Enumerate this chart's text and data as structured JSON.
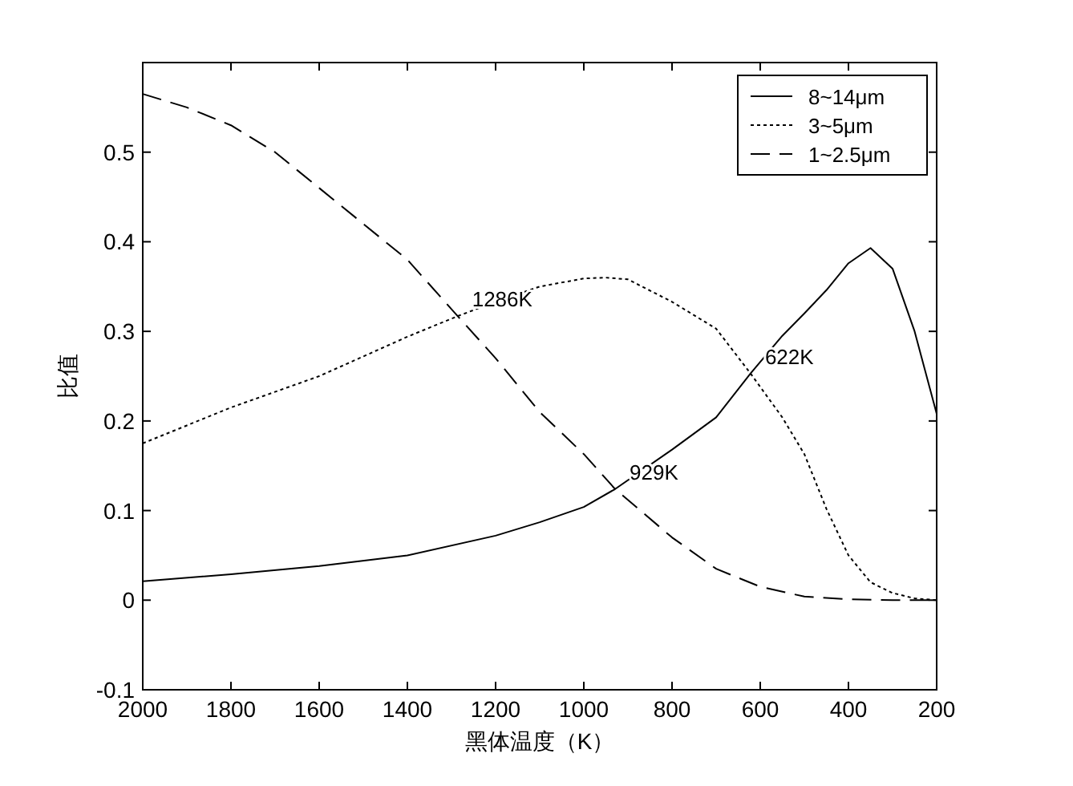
{
  "chart_data": {
    "type": "line",
    "xlabel": "黑体温度（K）",
    "ylabel": "比值",
    "xlim": [
      2000,
      200
    ],
    "ylim": [
      -0.1,
      0.6
    ],
    "xticks": [
      2000,
      1800,
      1600,
      1400,
      1200,
      1000,
      800,
      600,
      400,
      200
    ],
    "yticks": [
      -0.1,
      0,
      0.1,
      0.2,
      0.3,
      0.4,
      0.5
    ],
    "legend": "top right",
    "grid": false,
    "marker": "none",
    "series": [
      {
        "name": "8~14μm",
        "color": "#000000",
        "line_style": "solid",
        "x": [
          2000,
          1800,
          1600,
          1400,
          1200,
          1100,
          1000,
          929,
          800,
          700,
          622,
          550,
          500,
          450,
          400,
          350,
          300,
          250,
          200
        ],
        "values": [
          0.021,
          0.029,
          0.038,
          0.05,
          0.072,
          0.087,
          0.104,
          0.124,
          0.168,
          0.204,
          0.253,
          0.295,
          0.32,
          0.346,
          0.376,
          0.393,
          0.37,
          0.3,
          0.208
        ]
      },
      {
        "name": "3~5μm",
        "color": "#000000",
        "line_style": "dotted",
        "x": [
          2000,
          1800,
          1600,
          1400,
          1286,
          1200,
          1100,
          1000,
          950,
          900,
          800,
          700,
          622,
          550,
          500,
          450,
          400,
          350,
          300,
          250,
          200
        ],
        "values": [
          0.175,
          0.215,
          0.25,
          0.294,
          0.317,
          0.333,
          0.35,
          0.359,
          0.36,
          0.358,
          0.333,
          0.303,
          0.253,
          0.204,
          0.163,
          0.102,
          0.05,
          0.02,
          0.008,
          0.002,
          0
        ]
      },
      {
        "name": "1~2.5μm",
        "color": "#000000",
        "line_style": "dashed",
        "x": [
          2000,
          1900,
          1800,
          1700,
          1600,
          1500,
          1400,
          1286,
          1200,
          1100,
          1000,
          929,
          800,
          700,
          600,
          500,
          400,
          300,
          200
        ],
        "values": [
          0.565,
          0.55,
          0.53,
          0.5,
          0.46,
          0.42,
          0.38,
          0.317,
          0.27,
          0.21,
          0.163,
          0.124,
          0.07,
          0.035,
          0.015,
          0.004,
          0.001,
          0,
          0
        ]
      }
    ],
    "annotations": [
      {
        "text": "1286K",
        "x": 1286,
        "y": 0.317
      },
      {
        "text": "929K",
        "x": 929,
        "y": 0.124
      },
      {
        "text": "622K",
        "x": 622,
        "y": 0.253
      }
    ]
  }
}
